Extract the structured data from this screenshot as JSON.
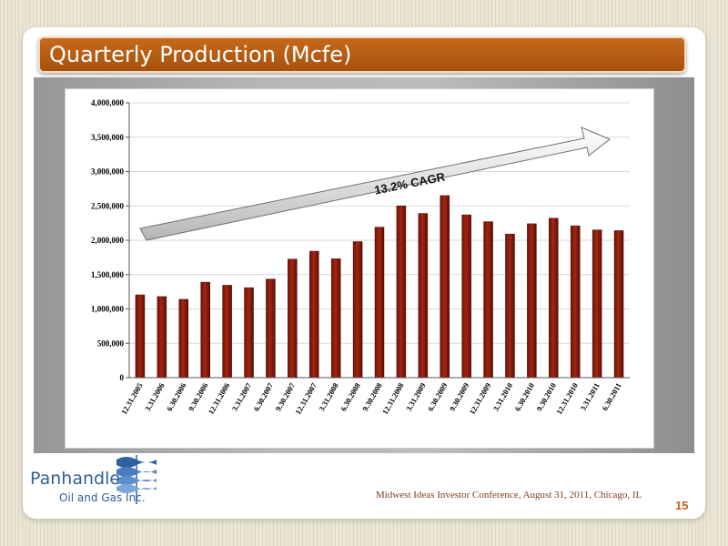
{
  "slide": {
    "title": "Quarterly Production (Mcfe)",
    "footer": "Midwest Ideas Investor Conference, August 31, 2011, Chicago, IL",
    "page_number": "15"
  },
  "logo": {
    "name": "Panhandle",
    "subtitle": "Oil and Gas Inc.",
    "icon": "panhandle-wave-logo-icon"
  },
  "colors": {
    "title_bar": "#b45a12",
    "bar_fill": "#8b1a0f",
    "footer_text": "#7a3e1a",
    "page_number": "#c8601a",
    "logo_blue": "#2f5f9e"
  },
  "chart_data": {
    "type": "bar",
    "title": "",
    "xlabel": "",
    "ylabel": "",
    "ylim": [
      0,
      4000000
    ],
    "yticks": [
      0,
      500000,
      1000000,
      1500000,
      2000000,
      2500000,
      3000000,
      3500000,
      4000000
    ],
    "ytick_labels": [
      "0",
      "500,000",
      "1,000,000",
      "1,500,000",
      "2,000,000",
      "2,500,000",
      "3,000,000",
      "3,500,000",
      "4,000,000"
    ],
    "grid": true,
    "categories": [
      "12.31.2005",
      "3.31.2006",
      "6.30.2006",
      "9.30.2006",
      "12.31.2006",
      "3.31.2007",
      "6.30.2007",
      "9.30.2007",
      "12.31.2007",
      "3.31.2008",
      "6.30.2008",
      "9.30.2008",
      "12.31.2008",
      "3.31.2009",
      "6.30.2009",
      "9.30.2009",
      "12.31.2009",
      "3.31.2010",
      "6.30.2010",
      "9.30.2010",
      "12.31.2010",
      "3.31.2011",
      "6.30.2011"
    ],
    "values": [
      1205000,
      1180000,
      1140000,
      1390000,
      1345000,
      1310000,
      1435000,
      1725000,
      1840000,
      1730000,
      1980000,
      2190000,
      2500000,
      2390000,
      2650000,
      2370000,
      2270000,
      2090000,
      2240000,
      2320000,
      2210000,
      2150000,
      2140000
    ],
    "annotation": "13.2% CAGR"
  }
}
